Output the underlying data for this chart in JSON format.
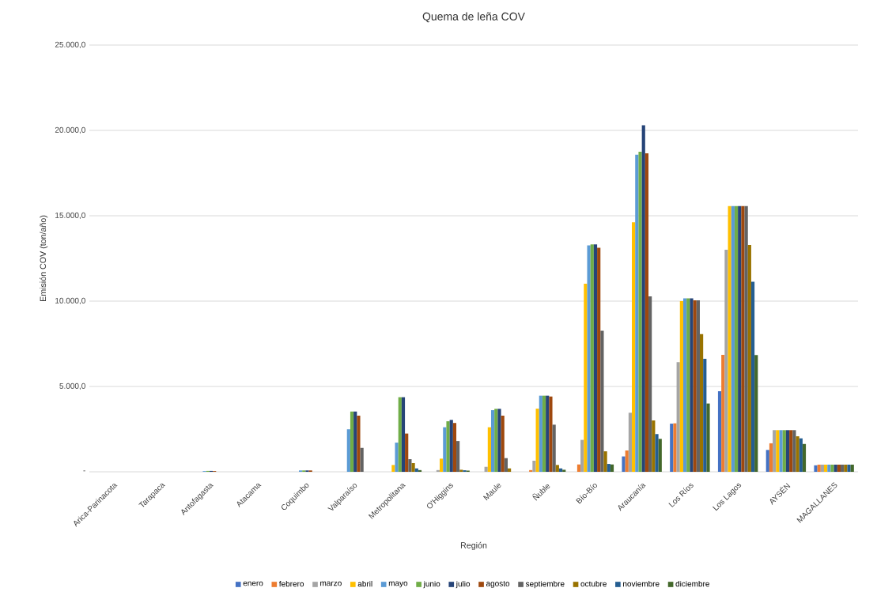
{
  "chart_data": {
    "type": "bar",
    "title": "Quema de leña COV",
    "xlabel": "Región",
    "ylabel": "Emisión COV (ton/año)",
    "categories": [
      "Arica-Parinacota",
      "Tarapaca",
      "Antofagasta",
      "Atacama",
      "Coquimbo",
      "Valparaíso",
      "Metropolitana",
      "O'Higgins",
      "Maule",
      "Ñuble",
      "Bío-Bío",
      "Araucanía",
      "Los Ríos",
      "Los Lagos",
      "AYSÉN",
      "MAGALLANES"
    ],
    "ylim": [
      0,
      25000
    ],
    "yticks": [
      {
        "value": 0,
        "label": "-"
      },
      {
        "value": 5000,
        "label": "5.000,0"
      },
      {
        "value": 10000,
        "label": "10.000,0"
      },
      {
        "value": 15000,
        "label": "15.000,0"
      },
      {
        "value": 20000,
        "label": "20.000,0"
      },
      {
        "value": 25000,
        "label": "25.000,0"
      }
    ],
    "grid": "y",
    "legend": "bottom",
    "series": [
      {
        "name": "enero",
        "color": "#4472c4",
        "values": [
          0,
          0,
          0,
          0,
          0,
          0,
          0,
          0,
          0,
          0,
          0,
          900,
          2820,
          4720,
          1280,
          380
        ]
      },
      {
        "name": "febrero",
        "color": "#ed7d31",
        "values": [
          0,
          0,
          0,
          0,
          0,
          0,
          0,
          0,
          0,
          100,
          430,
          1250,
          2840,
          6850,
          1670,
          420
        ]
      },
      {
        "name": "marzo",
        "color": "#a5a5a5",
        "values": [
          0,
          0,
          0,
          0,
          0,
          0,
          0,
          100,
          290,
          650,
          1870,
          3460,
          6420,
          13010,
          2440,
          420
        ]
      },
      {
        "name": "abril",
        "color": "#ffc000",
        "values": [
          0,
          0,
          0,
          0,
          0,
          0,
          400,
          770,
          2610,
          3700,
          11020,
          14620,
          10000,
          15570,
          2440,
          420
        ]
      },
      {
        "name": "mayo",
        "color": "#5b9bd5",
        "values": [
          0,
          0,
          40,
          0,
          80,
          2490,
          1710,
          2610,
          3610,
          4460,
          13260,
          18580,
          10160,
          15570,
          2440,
          420
        ]
      },
      {
        "name": "junio",
        "color": "#70ad47",
        "values": [
          0,
          0,
          50,
          0,
          80,
          3530,
          4370,
          2960,
          3690,
          4460,
          13320,
          18750,
          10160,
          15570,
          2440,
          420
        ]
      },
      {
        "name": "julio",
        "color": "#264478",
        "values": [
          0,
          0,
          50,
          0,
          80,
          3530,
          4370,
          3040,
          3690,
          4460,
          13320,
          20300,
          10160,
          15570,
          2440,
          420
        ]
      },
      {
        "name": "agosto",
        "color": "#9e480e",
        "values": [
          0,
          0,
          40,
          0,
          80,
          3290,
          2240,
          2860,
          3290,
          4410,
          13120,
          18660,
          10050,
          15570,
          2440,
          420
        ]
      },
      {
        "name": "septiembre",
        "color": "#636363",
        "values": [
          0,
          0,
          0,
          0,
          0,
          1400,
          740,
          1800,
          800,
          2760,
          8260,
          10280,
          10050,
          15570,
          2440,
          420
        ]
      },
      {
        "name": "octubre",
        "color": "#997300",
        "values": [
          0,
          0,
          0,
          0,
          0,
          0,
          510,
          120,
          200,
          400,
          1200,
          3010,
          8070,
          13290,
          2080,
          420
        ]
      },
      {
        "name": "noviembre",
        "color": "#255e91",
        "values": [
          0,
          0,
          0,
          0,
          0,
          0,
          200,
          90,
          0,
          200,
          460,
          2210,
          6620,
          11130,
          1960,
          420
        ]
      },
      {
        "name": "diciembre",
        "color": "#43682b",
        "values": [
          0,
          0,
          0,
          0,
          0,
          0,
          100,
          70,
          0,
          120,
          430,
          1930,
          4000,
          6840,
          1630,
          420
        ]
      }
    ]
  }
}
